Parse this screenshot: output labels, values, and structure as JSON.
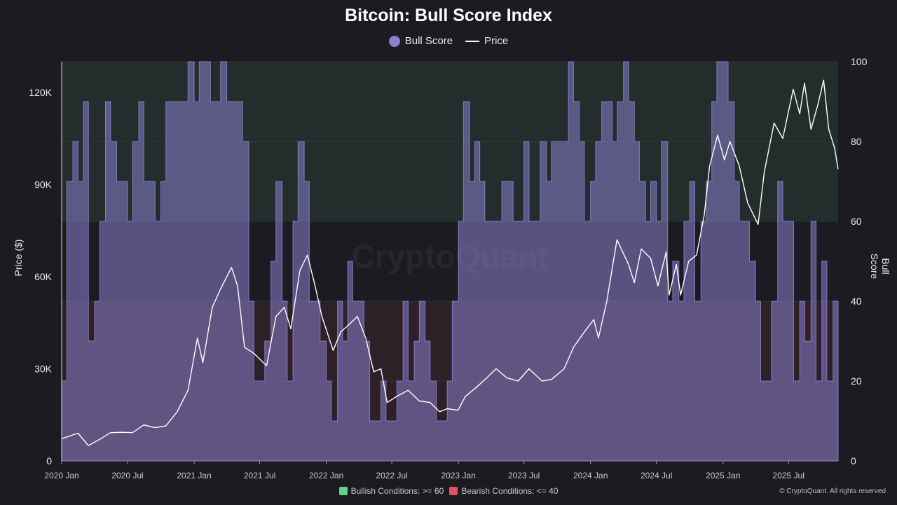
{
  "chart_data": {
    "type": "area",
    "title": "Bitcoin: Bull Score Index",
    "legend": {
      "position": "top-center",
      "entries": [
        "Bull Score",
        "Price"
      ]
    },
    "ylabel_left": "Price ($)",
    "ylabel_right": "Bull Score",
    "left_axis": {
      "ylim": [
        0,
        130000
      ],
      "ticks": [
        0,
        30000,
        60000,
        90000,
        120000
      ],
      "tick_labels": [
        "0",
        "30K",
        "60K",
        "90K",
        "120K"
      ]
    },
    "right_axis": {
      "ylim": [
        0,
        100
      ],
      "ticks": [
        0,
        20,
        40,
        60,
        80,
        100
      ],
      "tick_labels": [
        "0",
        "20",
        "40",
        "60",
        "80",
        "100"
      ]
    },
    "x_range": [
      "2020-01-01",
      "2025-11-15"
    ],
    "x_ticks": [
      "2020-01-01",
      "2020-07-01",
      "2021-01-01",
      "2021-07-01",
      "2022-01-01",
      "2022-07-01",
      "2023-01-01",
      "2023-07-01",
      "2024-01-01",
      "2024-07-01",
      "2025-01-01",
      "2025-07-01"
    ],
    "x_tick_labels": [
      "2020 Jan",
      "2020 Jul",
      "2021 Jan",
      "2021 Jul",
      "2022 Jan",
      "2022 Jul",
      "2023 Jan",
      "2023 Jul",
      "2024 Jan",
      "2024 Jul",
      "2025 Jan",
      "2025 Jul"
    ],
    "zones": [
      {
        "label": "Bullish Conditions: >= 60",
        "min": 60,
        "max": 100,
        "color": "#5fd38f"
      },
      {
        "label": "Bearish Conditions: <= 40",
        "min": 0,
        "max": 40,
        "color": "#e05565"
      }
    ],
    "watermark": "CryptoQuant",
    "copyright": "© CryptoQuant. All rights reserved",
    "colors": {
      "bull_score": "#8a7fd0",
      "price": "#ffffff"
    },
    "series": [
      {
        "name": "Bull Score",
        "x": [
          "2020-01-01",
          "2020-01-15",
          "2020-02-01",
          "2020-02-15",
          "2020-03-01",
          "2020-03-15",
          "2020-04-01",
          "2020-04-15",
          "2020-05-01",
          "2020-05-15",
          "2020-06-01",
          "2020-06-15",
          "2020-07-01",
          "2020-07-15",
          "2020-08-01",
          "2020-08-15",
          "2020-09-01",
          "2020-09-15",
          "2020-10-01",
          "2020-10-15",
          "2020-11-01",
          "2020-11-15",
          "2020-12-01",
          "2020-12-15",
          "2021-01-01",
          "2021-01-15",
          "2021-02-01",
          "2021-02-15",
          "2021-03-01",
          "2021-03-15",
          "2021-04-01",
          "2021-04-15",
          "2021-05-01",
          "2021-05-15",
          "2021-06-01",
          "2021-06-15",
          "2021-07-01",
          "2021-07-15",
          "2021-08-01",
          "2021-08-15",
          "2021-09-01",
          "2021-09-15",
          "2021-10-01",
          "2021-10-15",
          "2021-11-01",
          "2021-11-15",
          "2021-12-01",
          "2021-12-15",
          "2022-01-01",
          "2022-01-15",
          "2022-02-01",
          "2022-02-15",
          "2022-03-01",
          "2022-03-15",
          "2022-04-01",
          "2022-04-15",
          "2022-05-01",
          "2022-05-15",
          "2022-06-01",
          "2022-06-15",
          "2022-07-01",
          "2022-07-15",
          "2022-08-01",
          "2022-08-15",
          "2022-09-01",
          "2022-09-15",
          "2022-10-01",
          "2022-10-15",
          "2022-11-01",
          "2022-11-15",
          "2022-12-01",
          "2022-12-15",
          "2023-01-01",
          "2023-01-15",
          "2023-02-01",
          "2023-02-15",
          "2023-03-01",
          "2023-03-15",
          "2023-04-01",
          "2023-04-15",
          "2023-05-01",
          "2023-05-15",
          "2023-06-01",
          "2023-06-15",
          "2023-07-01",
          "2023-07-15",
          "2023-08-01",
          "2023-08-15",
          "2023-09-01",
          "2023-09-15",
          "2023-10-01",
          "2023-10-15",
          "2023-11-01",
          "2023-11-15",
          "2023-12-01",
          "2023-12-15",
          "2024-01-01",
          "2024-01-15",
          "2024-02-01",
          "2024-02-15",
          "2024-03-01",
          "2024-03-15",
          "2024-04-01",
          "2024-04-15",
          "2024-05-01",
          "2024-05-15",
          "2024-06-01",
          "2024-06-15",
          "2024-07-01",
          "2024-07-15",
          "2024-08-01",
          "2024-08-15",
          "2024-09-01",
          "2024-09-15",
          "2024-10-01",
          "2024-10-15",
          "2024-11-01",
          "2024-11-15",
          "2024-12-01",
          "2024-12-15",
          "2025-01-01",
          "2025-01-15",
          "2025-02-01",
          "2025-02-15",
          "2025-03-01",
          "2025-03-15",
          "2025-04-01",
          "2025-04-15",
          "2025-05-01",
          "2025-05-15",
          "2025-06-01",
          "2025-06-15",
          "2025-07-01",
          "2025-07-15",
          "2025-08-01",
          "2025-08-15",
          "2025-09-01",
          "2025-09-15",
          "2025-10-01",
          "2025-10-15",
          "2025-11-01",
          "2025-11-15"
        ],
        "values": [
          20,
          70,
          80,
          70,
          90,
          30,
          40,
          60,
          90,
          80,
          70,
          70,
          60,
          80,
          90,
          70,
          70,
          60,
          70,
          90,
          90,
          90,
          90,
          100,
          90,
          100,
          100,
          90,
          90,
          100,
          90,
          90,
          90,
          80,
          40,
          20,
          20,
          30,
          50,
          70,
          40,
          20,
          60,
          80,
          70,
          40,
          40,
          30,
          20,
          10,
          40,
          30,
          50,
          40,
          40,
          30,
          10,
          10,
          20,
          10,
          10,
          20,
          40,
          20,
          30,
          40,
          30,
          20,
          10,
          10,
          20,
          40,
          60,
          90,
          70,
          80,
          70,
          60,
          60,
          60,
          70,
          70,
          60,
          60,
          80,
          60,
          60,
          80,
          70,
          80,
          80,
          80,
          100,
          90,
          80,
          60,
          70,
          80,
          90,
          90,
          80,
          90,
          100,
          90,
          80,
          70,
          60,
          70,
          60,
          80,
          40,
          50,
          40,
          60,
          70,
          40,
          60,
          70,
          90,
          100,
          100,
          90,
          70,
          60,
          60,
          50,
          40,
          20,
          20,
          40,
          70,
          60,
          60,
          20,
          40,
          30,
          60,
          20,
          50,
          20,
          40,
          0
        ]
      },
      {
        "name": "Price",
        "x": [
          "2020-01-01",
          "2020-02-15",
          "2020-03-15",
          "2020-04-15",
          "2020-05-15",
          "2020-06-15",
          "2020-07-15",
          "2020-08-15",
          "2020-09-15",
          "2020-10-15",
          "2020-11-15",
          "2020-12-15",
          "2021-01-10",
          "2021-01-25",
          "2021-02-20",
          "2021-03-15",
          "2021-04-14",
          "2021-05-01",
          "2021-05-20",
          "2021-06-15",
          "2021-07-20",
          "2021-08-15",
          "2021-09-07",
          "2021-09-25",
          "2021-10-20",
          "2021-11-10",
          "2021-12-01",
          "2021-12-20",
          "2022-01-20",
          "2022-02-10",
          "2022-03-01",
          "2022-03-28",
          "2022-04-20",
          "2022-05-12",
          "2022-06-01",
          "2022-06-18",
          "2022-07-15",
          "2022-08-15",
          "2022-09-15",
          "2022-10-15",
          "2022-11-10",
          "2022-12-01",
          "2022-12-31",
          "2023-01-20",
          "2023-02-20",
          "2023-03-20",
          "2023-04-15",
          "2023-05-15",
          "2023-06-15",
          "2023-07-15",
          "2023-08-20",
          "2023-09-15",
          "2023-10-20",
          "2023-11-15",
          "2023-12-15",
          "2024-01-10",
          "2024-01-23",
          "2024-02-15",
          "2024-03-14",
          "2024-04-15",
          "2024-05-01",
          "2024-05-20",
          "2024-06-15",
          "2024-07-05",
          "2024-07-28",
          "2024-08-05",
          "2024-08-25",
          "2024-09-06",
          "2024-09-28",
          "2024-10-20",
          "2024-11-10",
          "2024-11-25",
          "2024-12-17",
          "2025-01-05",
          "2025-01-20",
          "2025-02-15",
          "2025-03-10",
          "2025-04-08",
          "2025-04-25",
          "2025-05-22",
          "2025-06-15",
          "2025-07-14",
          "2025-08-01",
          "2025-08-14",
          "2025-09-01",
          "2025-09-20",
          "2025-10-06",
          "2025-10-20",
          "2025-11-05",
          "2025-11-15"
        ],
        "values": [
          7200,
          9000,
          5000,
          7000,
          9200,
          9300,
          9200,
          11700,
          10800,
          11400,
          16000,
          23000,
          40000,
          32000,
          50000,
          56000,
          63000,
          57000,
          37000,
          35000,
          31000,
          47000,
          50000,
          43000,
          62000,
          67000,
          57000,
          47000,
          36000,
          42000,
          44000,
          47000,
          40000,
          29000,
          30000,
          19000,
          21000,
          23000,
          19500,
          19000,
          16000,
          17000,
          16500,
          21000,
          24000,
          27000,
          30000,
          27000,
          26000,
          30000,
          26000,
          26500,
          30000,
          37000,
          42000,
          46000,
          40000,
          52000,
          72000,
          64000,
          58000,
          69000,
          66000,
          57000,
          68000,
          54000,
          64000,
          54000,
          65000,
          67000,
          80000,
          96000,
          106000,
          98000,
          104000,
          96000,
          84000,
          77000,
          94000,
          110000,
          105000,
          121000,
          113000,
          123000,
          108000,
          116000,
          124000,
          108000,
          102000,
          95000
        ]
      }
    ]
  }
}
